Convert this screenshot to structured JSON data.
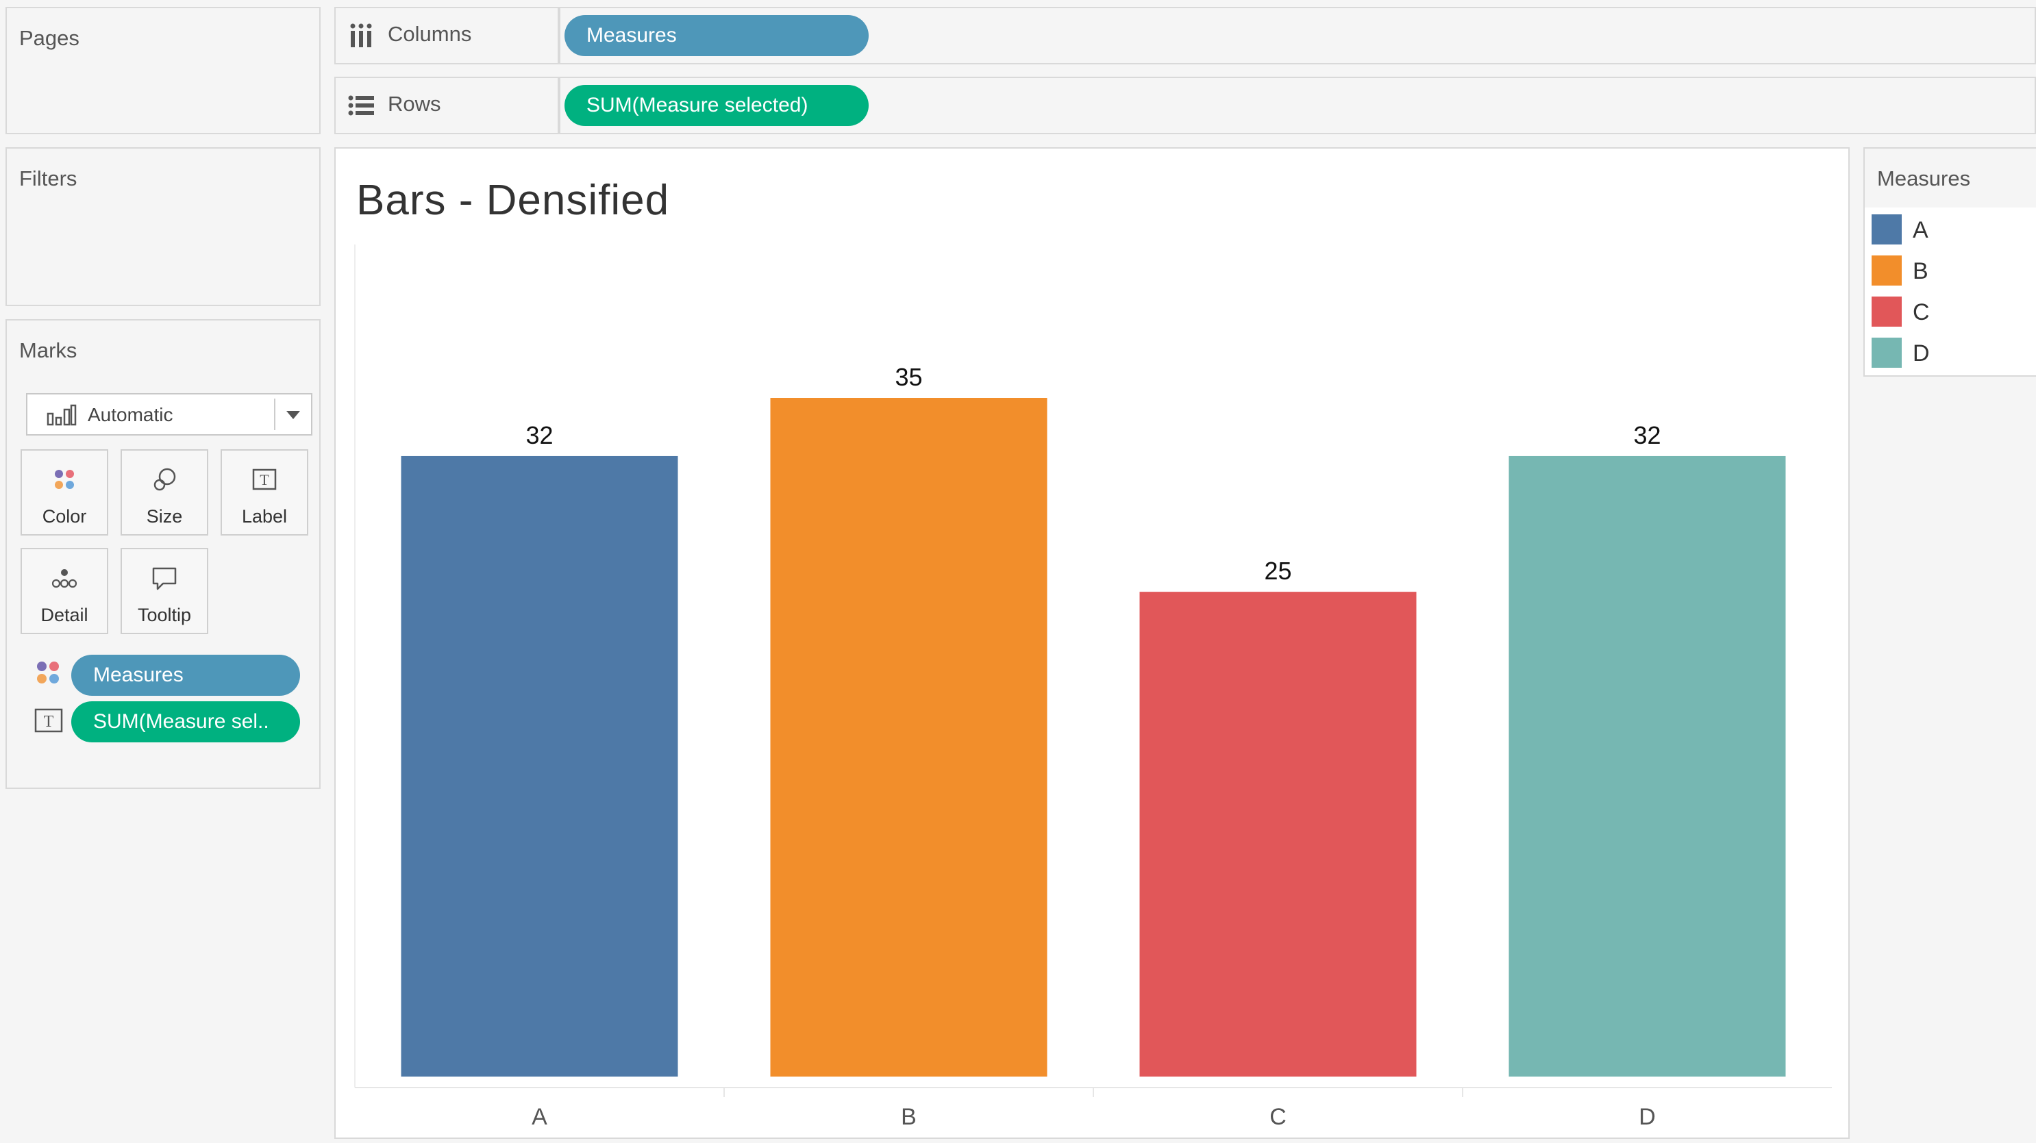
{
  "pages": {
    "title": "Pages"
  },
  "filters": {
    "title": "Filters"
  },
  "marks": {
    "title": "Marks",
    "type_label": "Automatic",
    "buttons": [
      {
        "label": "Color",
        "icon": "color-icon"
      },
      {
        "label": "Size",
        "icon": "size-icon"
      },
      {
        "label": "Label",
        "icon": "label-icon"
      },
      {
        "label": "Detail",
        "icon": "detail-icon"
      },
      {
        "label": "Tooltip",
        "icon": "tooltip-icon"
      }
    ],
    "fields": [
      {
        "label": "Measures",
        "icon": "color-icon"
      },
      {
        "label": "SUM(Measure sel..",
        "icon": "label-icon"
      }
    ]
  },
  "columns": {
    "label": "Columns",
    "pill": "Measures"
  },
  "rows": {
    "label": "Rows",
    "pill": "SUM(Measure selected)"
  },
  "legend": {
    "title": "Measures",
    "items": [
      {
        "label": "A",
        "color": "#4e79a7"
      },
      {
        "label": "B",
        "color": "#f28e2b"
      },
      {
        "label": "C",
        "color": "#e15759"
      },
      {
        "label": "D",
        "color": "#76b7b2"
      }
    ]
  },
  "chart_data": {
    "type": "bar",
    "title": "Bars - Densified",
    "categories": [
      "A",
      "B",
      "C",
      "D"
    ],
    "values": [
      32,
      35,
      25,
      32
    ],
    "colors": [
      "#4e79a7",
      "#f28e2b",
      "#e15759",
      "#76b7b2"
    ],
    "data_labels": [
      "32",
      "35",
      "25",
      "32"
    ],
    "xlabel": "",
    "ylabel": "",
    "ylim": [
      0,
      35
    ],
    "grid": false
  }
}
